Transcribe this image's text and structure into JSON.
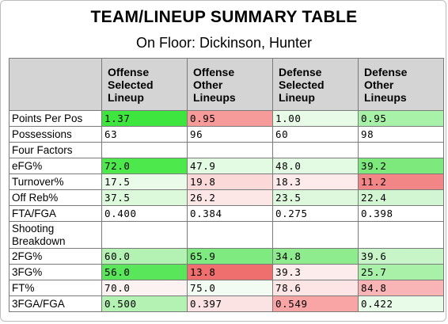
{
  "title": "TEAM/LINEUP SUMMARY TABLE",
  "subtitle": "On Floor: Dickinson, Hunter",
  "table": {
    "headers": [
      "",
      "Offense Selected Lineup",
      "Offense Other Lineups",
      "Defense Selected Lineup",
      "Defense Other Lineups"
    ],
    "rows": [
      {
        "label": "Points Per Pos",
        "cells": [
          {
            "value": "1.37",
            "bg": "#3ee53e"
          },
          {
            "value": "0.95",
            "bg": "#f79a9a"
          },
          {
            "value": "1.00",
            "bg": "#e7fbe7"
          },
          {
            "value": "0.95",
            "bg": "#a8f1a8"
          }
        ]
      },
      {
        "label": "Possessions",
        "cells": [
          {
            "value": "63",
            "bg": "#ffffff"
          },
          {
            "value": "96",
            "bg": "#ffffff"
          },
          {
            "value": "60",
            "bg": "#ffffff"
          },
          {
            "value": "98",
            "bg": "#ffffff"
          }
        ]
      },
      {
        "label": "Four Factors",
        "section": true
      },
      {
        "label": "eFG%",
        "cells": [
          {
            "value": "72.0",
            "bg": "#4ce84c"
          },
          {
            "value": "47.9",
            "bg": "#e3fae3"
          },
          {
            "value": "48.0",
            "bg": "#e3fae3"
          },
          {
            "value": "39.2",
            "bg": "#7de97d"
          }
        ]
      },
      {
        "label": "Turnover%",
        "cells": [
          {
            "value": "17.5",
            "bg": "#eafbea"
          },
          {
            "value": "19.8",
            "bg": "#fcd9d9"
          },
          {
            "value": "18.3",
            "bg": "#fdebeb"
          },
          {
            "value": "11.2",
            "bg": "#f28585"
          }
        ]
      },
      {
        "label": "Off Reb%",
        "cells": [
          {
            "value": "37.5",
            "bg": "#dcf9dc"
          },
          {
            "value": "26.2",
            "bg": "#fde6e6"
          },
          {
            "value": "23.5",
            "bg": "#def8de"
          },
          {
            "value": "22.4",
            "bg": "#d2f6d2"
          }
        ]
      },
      {
        "label": "FTA/FGA",
        "cells": [
          {
            "value": "0.400",
            "bg": "#ffffff"
          },
          {
            "value": "0.384",
            "bg": "#ffffff"
          },
          {
            "value": "0.275",
            "bg": "#ffffff"
          },
          {
            "value": "0.398",
            "bg": "#ffffff"
          }
        ]
      },
      {
        "label": "Shooting Breakdown",
        "section": true,
        "twoLine": true
      },
      {
        "label": "2FG%",
        "cells": [
          {
            "value": "60.0",
            "bg": "#b3f2b3"
          },
          {
            "value": "65.9",
            "bg": "#7fea7f"
          },
          {
            "value": "34.8",
            "bg": "#8eec8e"
          },
          {
            "value": "39.6",
            "bg": "#c8f5c8"
          }
        ]
      },
      {
        "label": "3FG%",
        "cells": [
          {
            "value": "56.0",
            "bg": "#5ae65a"
          },
          {
            "value": "13.8",
            "bg": "#ef6f6f"
          },
          {
            "value": "39.3",
            "bg": "#fdecec"
          },
          {
            "value": "25.7",
            "bg": "#a9f1a9"
          }
        ]
      },
      {
        "label": "FT%",
        "cells": [
          {
            "value": "70.0",
            "bg": "#fdf2f2"
          },
          {
            "value": "75.0",
            "bg": "#f2fcf2"
          },
          {
            "value": "78.6",
            "bg": "#fde5e5"
          },
          {
            "value": "84.8",
            "bg": "#f9b5b5"
          }
        ]
      },
      {
        "label": "3FGA/FGA",
        "cells": [
          {
            "value": "0.500",
            "bg": "#b4f2b4"
          },
          {
            "value": "0.397",
            "bg": "#fbe3e3"
          },
          {
            "value": "0.549",
            "bg": "#f9a5a5"
          },
          {
            "value": "0.422",
            "bg": "#e8fbe8"
          }
        ]
      }
    ]
  }
}
